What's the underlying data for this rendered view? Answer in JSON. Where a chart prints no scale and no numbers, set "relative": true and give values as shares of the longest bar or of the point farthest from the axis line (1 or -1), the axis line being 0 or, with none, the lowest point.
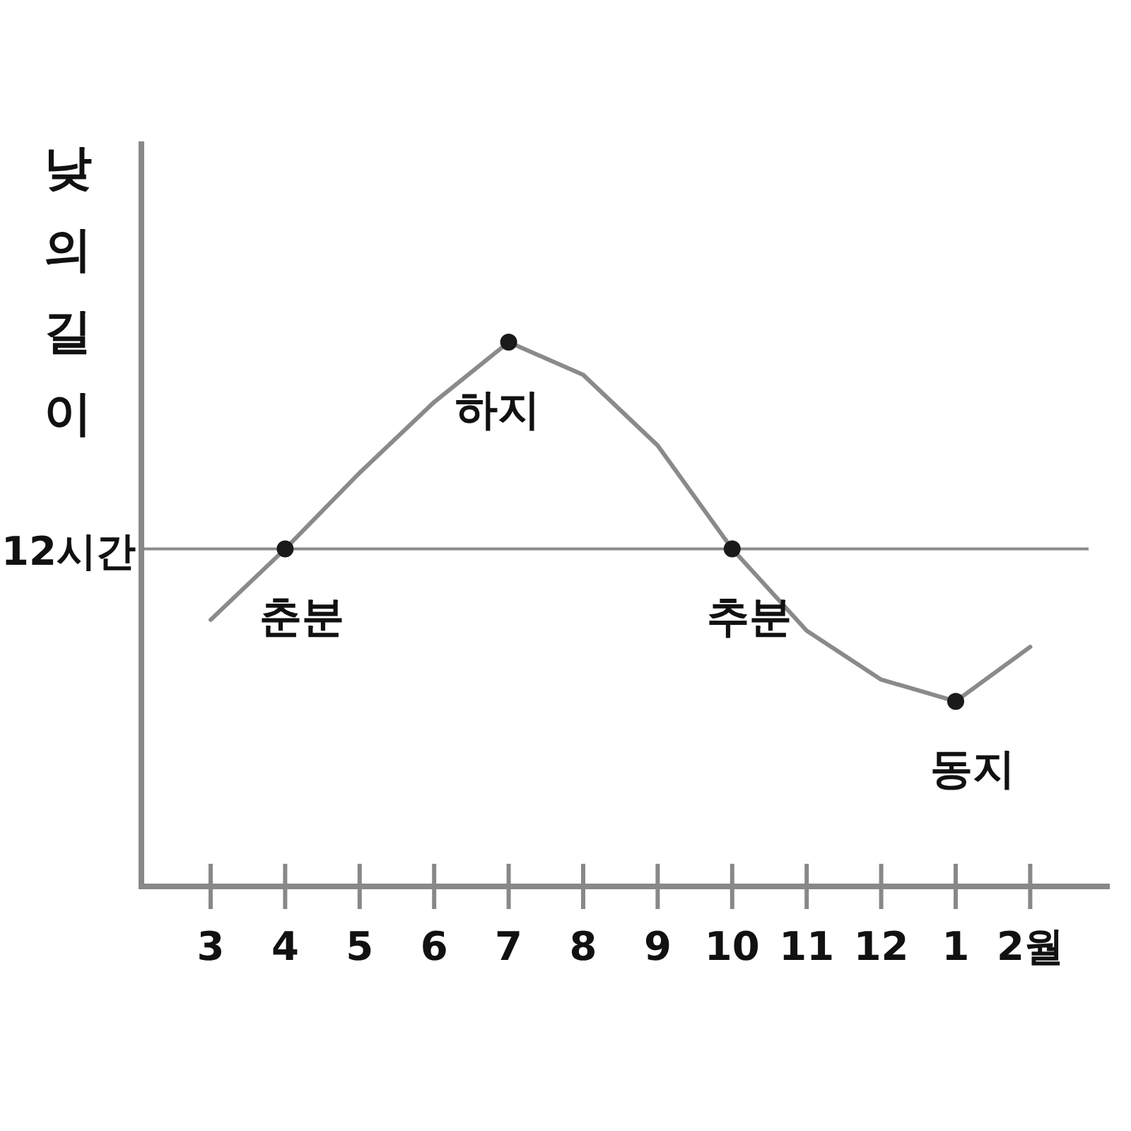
{
  "chart_data": {
    "type": "line",
    "ylabel": "낮의 길이",
    "relative": true,
    "grid": false,
    "categories": [
      "3",
      "4",
      "5",
      "6",
      "7",
      "8",
      "9",
      "10",
      "11",
      "12",
      "1",
      "2월"
    ],
    "series": [
      {
        "type": "line",
        "color": "#8a8a8a",
        "marker": "none",
        "values": [
          0.49,
          0.62,
          0.76,
          0.89,
          1,
          0.94,
          0.81,
          0.62,
          0.47,
          0.38,
          0.34,
          0.44
        ]
      },
      {
        "type": "scatter",
        "color": "#1a1a1a",
        "marker": "circle",
        "x": [
          "4",
          "7",
          "10",
          "1"
        ],
        "values": [
          0.62,
          1,
          0.62,
          0.34
        ]
      }
    ],
    "ref_lines": [
      {
        "axis": "y",
        "value": 0.62,
        "label": "12시간",
        "color": "#8a8a8a"
      }
    ],
    "annotations": [
      {
        "text": "춘분",
        "x": "4",
        "y": 0.62
      },
      {
        "text": "하지",
        "x": "7",
        "y": 1
      },
      {
        "text": "추분",
        "x": "10",
        "y": 0.62
      },
      {
        "text": "동지",
        "x": "1",
        "y": 0.34
      }
    ]
  }
}
